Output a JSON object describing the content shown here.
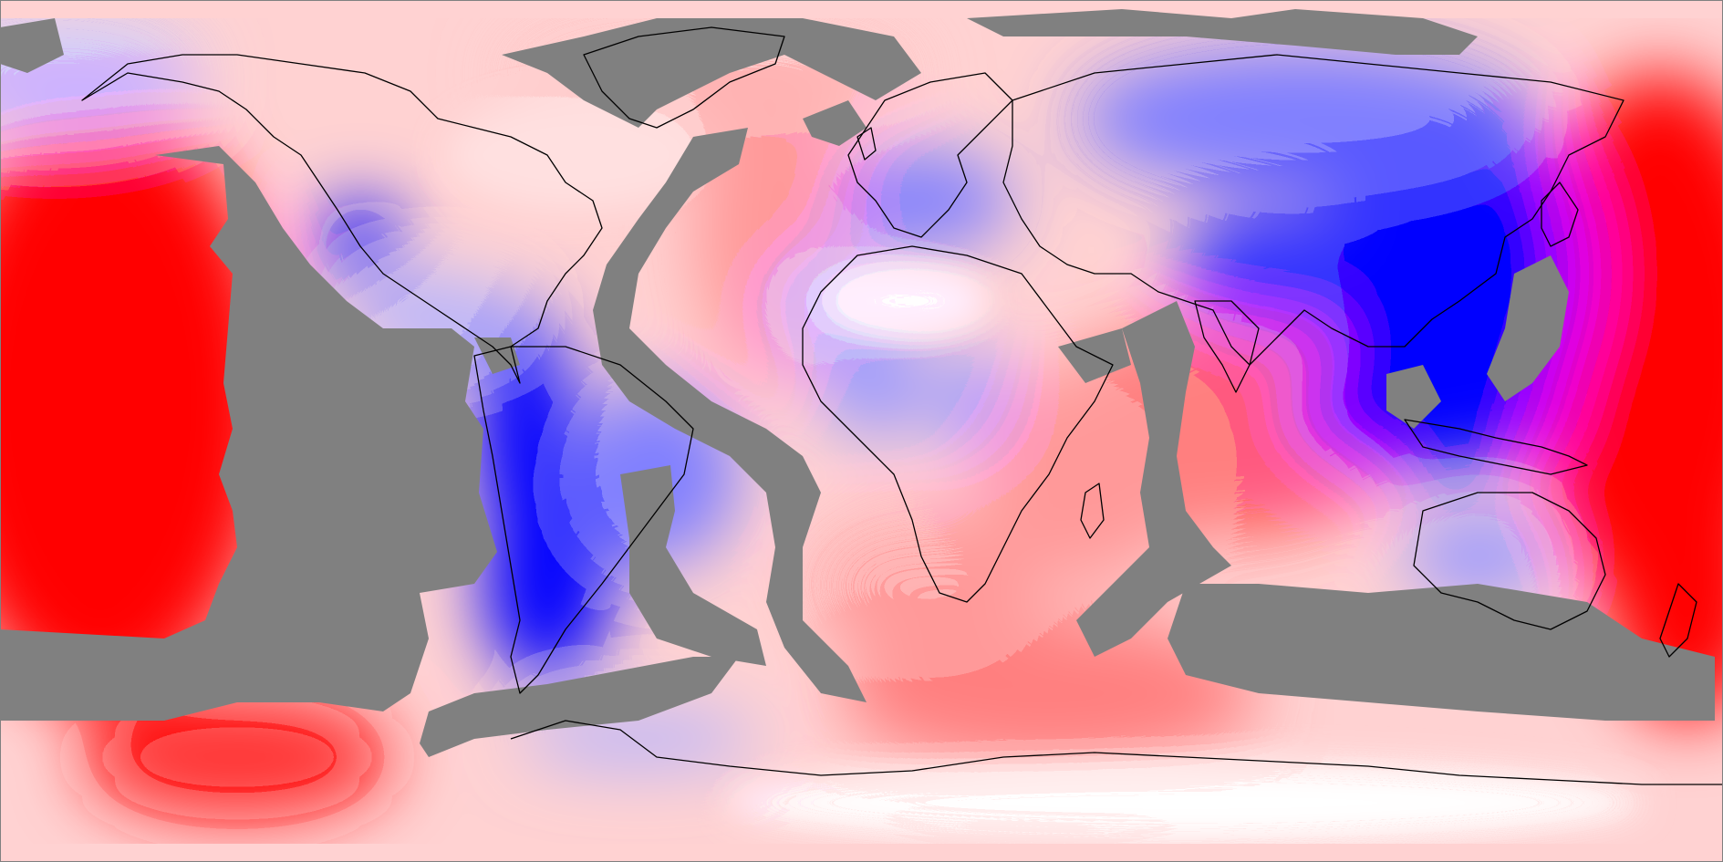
{
  "map": {
    "type": "equirectangular global scalar field",
    "color_scale": {
      "negative": "#0000ff",
      "neutral": "#ffffff",
      "positive": "#ff0000",
      "no_data": "#808080",
      "coastline": "#000000"
    },
    "levels": 21,
    "labels": []
  }
}
